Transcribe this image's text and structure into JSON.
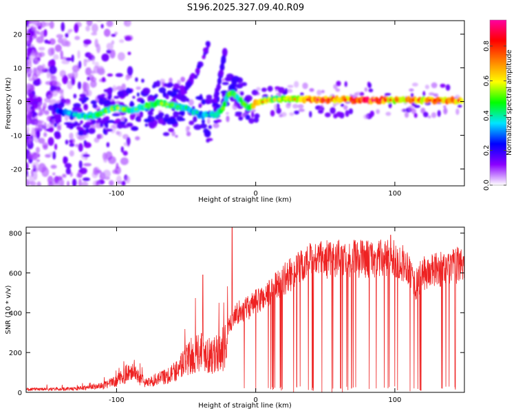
{
  "title": "S196.2025.327.09.40.R09",
  "chart_data": [
    {
      "type": "heatmap",
      "name": "spectrogram",
      "xlabel": "Height of straight line (km)",
      "ylabel": "Frequency (Hz)",
      "xlim": [
        -165,
        150
      ],
      "ylim": [
        -25,
        24
      ],
      "xticks": [
        -100,
        0,
        100
      ],
      "yticks": [
        -20,
        -10,
        0,
        10,
        20
      ],
      "colorbar": {
        "label": "Normalized spectral amplitude",
        "range": [
          0,
          0.95
        ],
        "ticks": [
          "0.0",
          "0.2",
          "0.4",
          "0.6",
          "0.8"
        ],
        "colors": [
          "#ffffff",
          "#8a00ff",
          "#0000ff",
          "#00e5ff",
          "#00ff00",
          "#ffff00",
          "#ff8000",
          "#ff0000",
          "#ff00a0"
        ]
      },
      "ridge": {
        "x": [
          -140,
          -130,
          -120,
          -110,
          -100,
          -90,
          -80,
          -70,
          -60,
          -50,
          -40,
          -30,
          -25,
          -20,
          -17,
          -12,
          -8,
          -5,
          0,
          10,
          20,
          40,
          60,
          80,
          100,
          120,
          148
        ],
        "y": [
          -3,
          -4,
          -4.5,
          -3,
          -2,
          -2.5,
          -1.5,
          -0.5,
          -1,
          -2,
          -4,
          -4,
          -3,
          2,
          2.5,
          1,
          -1,
          -2,
          -0.5,
          0.5,
          0.8,
          0.5,
          0.6,
          0.4,
          0.5,
          0.4,
          0.3
        ],
        "amp": [
          0.3,
          0.35,
          0.4,
          0.45,
          0.5,
          0.45,
          0.45,
          0.5,
          0.45,
          0.4,
          0.35,
          0.35,
          0.45,
          0.5,
          0.5,
          0.45,
          0.5,
          0.55,
          0.7,
          0.55,
          0.5,
          0.8,
          0.7,
          0.85,
          0.65,
          0.7,
          0.75
        ]
      },
      "branches": [
        {
          "x": [
            -60,
            -50,
            -42,
            -38,
            -34
          ],
          "y": [
            -1,
            4,
            9,
            13,
            17
          ]
        },
        {
          "x": [
            -30,
            -26,
            -22
          ],
          "y": [
            -1,
            6,
            15
          ]
        }
      ]
    },
    {
      "type": "line",
      "name": "snr",
      "xlabel": "Height of straight line (km)",
      "ylabel": "SNR (10 * v/v)",
      "xlim": [
        -165,
        150
      ],
      "ylim": [
        0,
        830
      ],
      "xticks": [
        -100,
        0,
        100
      ],
      "yticks": [
        0,
        200,
        400,
        600,
        800
      ],
      "color": "#ee2222",
      "envelope": {
        "x": [
          -165,
          -130,
          -110,
          -100,
          -88,
          -85,
          -80,
          -60,
          -50,
          -40,
          -30,
          -20,
          -15,
          -10,
          0,
          10,
          20,
          30,
          40,
          60,
          80,
          100,
          110,
          115,
          120,
          130,
          140,
          150
        ],
        "y": [
          20,
          25,
          45,
          80,
          160,
          120,
          60,
          130,
          220,
          300,
          250,
          330,
          420,
          420,
          470,
          520,
          590,
          640,
          690,
          700,
          700,
          695,
          660,
          560,
          620,
          640,
          650,
          680
        ]
      },
      "dropout_start_km": 10,
      "peaks": [
        {
          "x": -17,
          "y": 830
        },
        {
          "x": -38,
          "y": 590
        },
        {
          "x": 97,
          "y": 790
        }
      ]
    }
  ]
}
